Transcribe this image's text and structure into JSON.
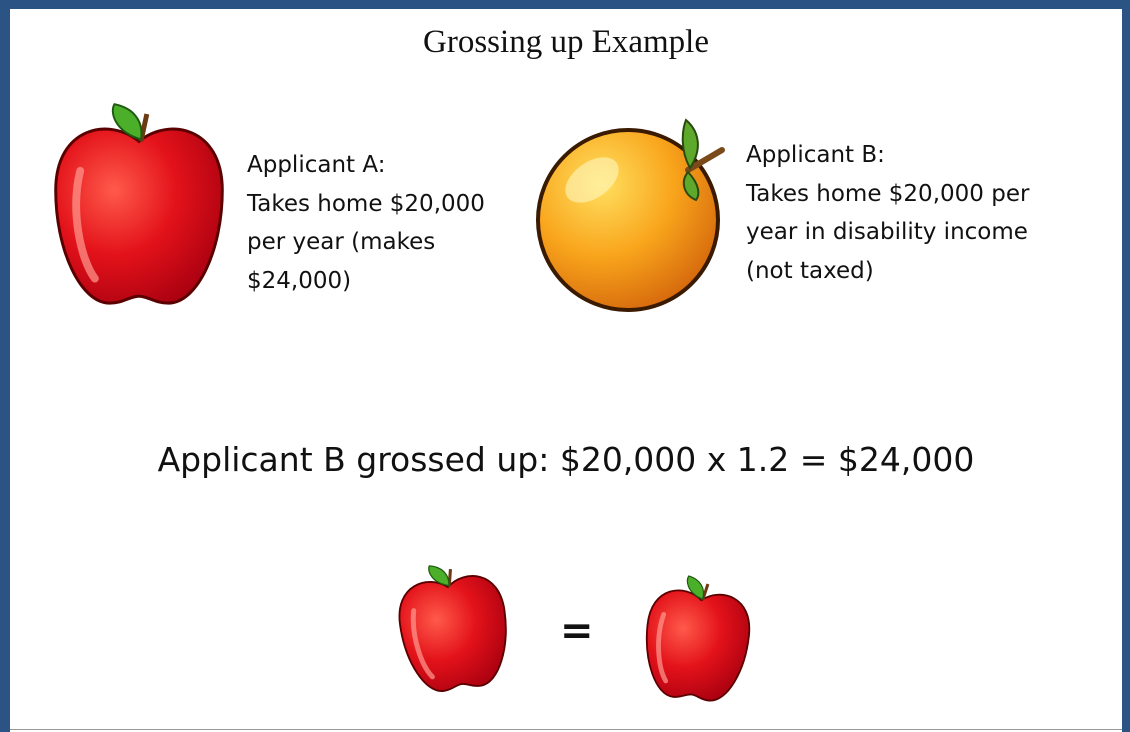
{
  "title": "Grossing up Example",
  "applicant_a": {
    "lines": [
      "Applicant A:",
      "Takes home $20,000",
      "per year (makes",
      "$24,000)"
    ]
  },
  "applicant_b": {
    "lines": [
      "Applicant B:",
      "Takes home $20,000 per",
      "year in disability income",
      "(not taxed)"
    ]
  },
  "formula": "Applicant B grossed up: $20,000 x 1.2 = $24,000",
  "equals": "="
}
